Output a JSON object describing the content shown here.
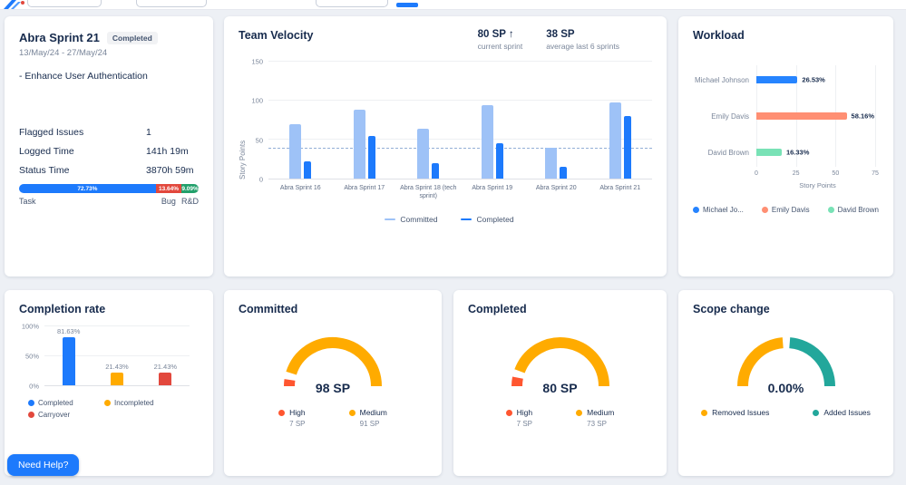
{
  "page": {
    "background": "#edf0f5",
    "card_background": "#ffffff",
    "accent": "#1d7afc",
    "text_primary": "#172b4d",
    "text_secondary": "#7a869a"
  },
  "header": {
    "active_tab_color": "#1d7afc"
  },
  "help_button": {
    "label": "Need Help?",
    "color": "#1d7afc"
  },
  "sprint": {
    "title": "Abra Sprint 21",
    "status": "Completed",
    "date_range": "13/May/24 - 27/May/24",
    "goal": "- Enhance User Authentication",
    "stats": [
      {
        "label": "Flagged Issues",
        "value": "1"
      },
      {
        "label": "Logged Time",
        "value": "141h 19m"
      },
      {
        "label": "Status Time",
        "value": "3870h 59m"
      }
    ],
    "issue_breakdown": [
      {
        "label": "Task",
        "display": "72.73%",
        "percent": 72.73,
        "color": "#1d7afc"
      },
      {
        "label": "Bug",
        "display": "13.64%",
        "percent": 13.64,
        "color": "#e2483d"
      },
      {
        "label": "R&D",
        "display": "9.09%",
        "percent": 9.09,
        "color": "#22a06b"
      }
    ]
  },
  "velocity": {
    "title": "Team Velocity",
    "current_value": "80 SP ↑",
    "current_label": "current sprint",
    "average_value": "38 SP",
    "average_label": "average last 6 sprints",
    "chart_data": {
      "type": "bar",
      "categories": [
        "Abra Sprint 16",
        "Abra Sprint 17",
        "Abra Sprint 18 (tech sprint)",
        "Abra Sprint 19",
        "Abra Sprint 20",
        "Abra Sprint 21"
      ],
      "series": [
        {
          "name": "Committed",
          "color": "#9ec2f7",
          "values": [
            70,
            88,
            64,
            94,
            40,
            98
          ]
        },
        {
          "name": "Completed",
          "color": "#1d7afc",
          "values": [
            22,
            55,
            20,
            45,
            15,
            80
          ]
        }
      ],
      "ylabel": "Story Points",
      "yticks": [
        0,
        50,
        100,
        150
      ],
      "ylim": [
        0,
        150
      ],
      "average_line": 38,
      "legend_position": "bottom"
    }
  },
  "workload": {
    "title": "Workload",
    "chart_data": {
      "type": "bar-horizontal",
      "categories": [
        "Michael Johnson",
        "Emily Davis",
        "David Brown"
      ],
      "values": [
        26,
        57,
        16
      ],
      "value_labels": [
        "26.53%",
        "58.16%",
        "16.33%"
      ],
      "colors": [
        "#2684ff",
        "#ff8f73",
        "#79e2b6"
      ],
      "xlabel": "Story Points",
      "xticks": [
        0,
        25,
        50,
        75
      ],
      "xlim": [
        0,
        75
      ],
      "legend": [
        {
          "label": "Michael Jo...",
          "color": "#2684ff"
        },
        {
          "label": "Emily Davis",
          "color": "#ff8f73"
        },
        {
          "label": "David Brown",
          "color": "#79e2b6"
        }
      ]
    }
  },
  "completion": {
    "title": "Completion rate",
    "chart_data": {
      "type": "bar",
      "categories": [
        "Completed",
        "Incompleted",
        "Carryover"
      ],
      "values": [
        81.63,
        21.43,
        21.43
      ],
      "value_labels": [
        "81.63%",
        "21.43%",
        "21.43%"
      ],
      "colors": [
        "#1d7afc",
        "#ffab00",
        "#e2483d"
      ],
      "yticks": [
        "0%",
        "50%",
        "100%"
      ],
      "ylim": [
        0,
        100
      ],
      "legend": [
        {
          "label": "Completed",
          "color": "#1d7afc"
        },
        {
          "label": "Incompleted",
          "color": "#ffab00"
        },
        {
          "label": "Carryover",
          "color": "#e2483d"
        }
      ]
    }
  },
  "committed": {
    "title": "Committed",
    "center_text": "98 SP",
    "chart_data": {
      "type": "gauge",
      "segments": [
        {
          "label": "High",
          "value": "7 SP",
          "fraction": 0.0714,
          "color": "#ff5630"
        },
        {
          "label": "Medium",
          "value": "91 SP",
          "fraction": 0.9286,
          "color": "#ffab00"
        }
      ]
    }
  },
  "completed": {
    "title": "Completed",
    "center_text": "80 SP",
    "chart_data": {
      "type": "gauge",
      "segments": [
        {
          "label": "High",
          "value": "7 SP",
          "fraction": 0.0875,
          "color": "#ff5630"
        },
        {
          "label": "Medium",
          "value": "73 SP",
          "fraction": 0.9125,
          "color": "#ffab00"
        }
      ]
    }
  },
  "scope": {
    "title": "Scope change",
    "center_text": "0.00%",
    "chart_data": {
      "type": "gauge",
      "segments": [
        {
          "label": "Removed Issues",
          "value": "",
          "fraction": 0.5,
          "color": "#ffab00"
        },
        {
          "label": "Added Issues",
          "value": "",
          "fraction": 0.5,
          "color": "#22a79b"
        }
      ]
    }
  }
}
